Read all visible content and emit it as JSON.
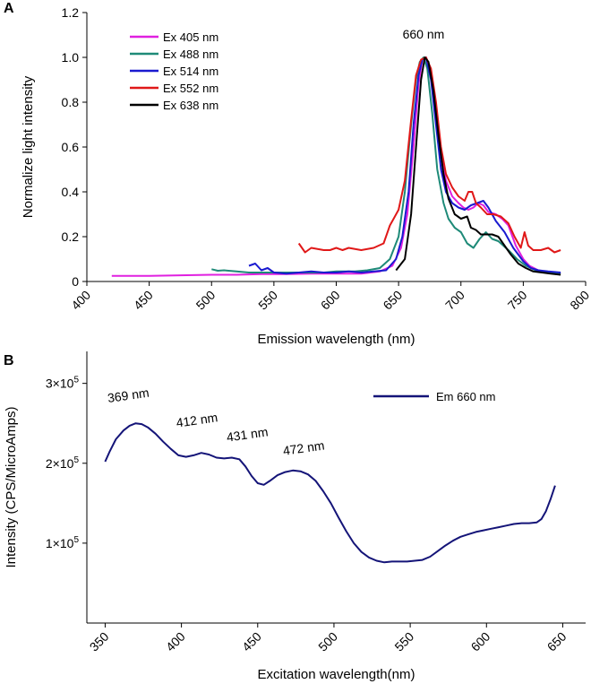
{
  "chart_data": [
    {
      "type": "line",
      "panel_label": "A",
      "xlabel": "Emission wavelength (nm)",
      "ylabel": "Normalize light intensity",
      "xlim": [
        400,
        800
      ],
      "ylim": [
        0,
        1.2
      ],
      "xticks": [
        "400",
        "450",
        "500",
        "550",
        "600",
        "650",
        "700",
        "750",
        "800"
      ],
      "yticks": [
        "0",
        "0.2",
        "0.4",
        "0.6",
        "0.8",
        "1.0",
        "1.2"
      ],
      "annotations": [
        {
          "text": "660 nm",
          "x": 670,
          "y": 1.06
        }
      ],
      "legend_position": "top-left",
      "series": [
        {
          "name": "Ex 405 nm",
          "color": "#e020e0",
          "points": [
            [
              420,
              0.025
            ],
            [
              450,
              0.025
            ],
            [
              480,
              0.028
            ],
            [
              500,
              0.03
            ],
            [
              520,
              0.03
            ],
            [
              540,
              0.033
            ],
            [
              560,
              0.033
            ],
            [
              580,
              0.035
            ],
            [
              600,
              0.035
            ],
            [
              620,
              0.035
            ],
            [
              635,
              0.045
            ],
            [
              645,
              0.07
            ],
            [
              652,
              0.15
            ],
            [
              657,
              0.3
            ],
            [
              662,
              0.6
            ],
            [
              666,
              0.88
            ],
            [
              669,
              0.99
            ],
            [
              672,
              1.0
            ],
            [
              675,
              0.95
            ],
            [
              679,
              0.8
            ],
            [
              683,
              0.6
            ],
            [
              688,
              0.45
            ],
            [
              693,
              0.38
            ],
            [
              698,
              0.35
            ],
            [
              702,
              0.33
            ],
            [
              706,
              0.32
            ],
            [
              710,
              0.33
            ],
            [
              714,
              0.35
            ],
            [
              718,
              0.34
            ],
            [
              722,
              0.31
            ],
            [
              728,
              0.3
            ],
            [
              733,
              0.28
            ],
            [
              738,
              0.25
            ],
            [
              744,
              0.16
            ],
            [
              750,
              0.1
            ],
            [
              755,
              0.07
            ],
            [
              762,
              0.05
            ],
            [
              770,
              0.04
            ],
            [
              780,
              0.035
            ]
          ]
        },
        {
          "name": "Ex 488 nm",
          "color": "#1e8a78",
          "points": [
            [
              500,
              0.055
            ],
            [
              505,
              0.048
            ],
            [
              510,
              0.05
            ],
            [
              520,
              0.045
            ],
            [
              530,
              0.04
            ],
            [
              540,
              0.04
            ],
            [
              550,
              0.04
            ],
            [
              560,
              0.04
            ],
            [
              570,
              0.04
            ],
            [
              580,
              0.04
            ],
            [
              590,
              0.04
            ],
            [
              600,
              0.045
            ],
            [
              615,
              0.045
            ],
            [
              625,
              0.05
            ],
            [
              635,
              0.06
            ],
            [
              643,
              0.1
            ],
            [
              650,
              0.2
            ],
            [
              655,
              0.4
            ],
            [
              660,
              0.7
            ],
            [
              664,
              0.9
            ],
            [
              667,
              0.98
            ],
            [
              670,
              1.0
            ],
            [
              673,
              0.95
            ],
            [
              677,
              0.75
            ],
            [
              681,
              0.5
            ],
            [
              686,
              0.35
            ],
            [
              690,
              0.28
            ],
            [
              695,
              0.24
            ],
            [
              700,
              0.22
            ],
            [
              705,
              0.17
            ],
            [
              710,
              0.15
            ],
            [
              715,
              0.19
            ],
            [
              720,
              0.22
            ],
            [
              725,
              0.19
            ],
            [
              730,
              0.18
            ],
            [
              738,
              0.14
            ],
            [
              745,
              0.1
            ],
            [
              752,
              0.07
            ],
            [
              760,
              0.05
            ],
            [
              770,
              0.04
            ],
            [
              780,
              0.035
            ]
          ]
        },
        {
          "name": "Ex 514 nm",
          "color": "#1a1ad0",
          "points": [
            [
              530,
              0.07
            ],
            [
              535,
              0.08
            ],
            [
              540,
              0.05
            ],
            [
              545,
              0.06
            ],
            [
              550,
              0.04
            ],
            [
              560,
              0.035
            ],
            [
              570,
              0.04
            ],
            [
              580,
              0.045
            ],
            [
              590,
              0.04
            ],
            [
              600,
              0.04
            ],
            [
              610,
              0.045
            ],
            [
              620,
              0.04
            ],
            [
              630,
              0.045
            ],
            [
              640,
              0.05
            ],
            [
              648,
              0.1
            ],
            [
              653,
              0.2
            ],
            [
              658,
              0.4
            ],
            [
              662,
              0.7
            ],
            [
              666,
              0.92
            ],
            [
              669,
              0.99
            ],
            [
              672,
              1.0
            ],
            [
              676,
              0.9
            ],
            [
              680,
              0.7
            ],
            [
              684,
              0.5
            ],
            [
              688,
              0.4
            ],
            [
              693,
              0.35
            ],
            [
              698,
              0.33
            ],
            [
              703,
              0.32
            ],
            [
              708,
              0.34
            ],
            [
              713,
              0.35
            ],
            [
              718,
              0.36
            ],
            [
              722,
              0.33
            ],
            [
              728,
              0.27
            ],
            [
              735,
              0.22
            ],
            [
              742,
              0.15
            ],
            [
              750,
              0.09
            ],
            [
              756,
              0.06
            ],
            [
              762,
              0.05
            ],
            [
              770,
              0.045
            ],
            [
              780,
              0.04
            ]
          ]
        },
        {
          "name": "Ex 552 nm",
          "color": "#e01818",
          "points": [
            [
              570,
              0.17
            ],
            [
              575,
              0.13
            ],
            [
              580,
              0.15
            ],
            [
              590,
              0.14
            ],
            [
              595,
              0.14
            ],
            [
              600,
              0.15
            ],
            [
              605,
              0.14
            ],
            [
              610,
              0.15
            ],
            [
              620,
              0.14
            ],
            [
              630,
              0.15
            ],
            [
              638,
              0.17
            ],
            [
              643,
              0.25
            ],
            [
              646,
              0.28
            ],
            [
              650,
              0.32
            ],
            [
              655,
              0.45
            ],
            [
              660,
              0.72
            ],
            [
              664,
              0.92
            ],
            [
              668,
              0.99
            ],
            [
              672,
              1.0
            ],
            [
              676,
              0.95
            ],
            [
              680,
              0.8
            ],
            [
              684,
              0.6
            ],
            [
              688,
              0.48
            ],
            [
              693,
              0.42
            ],
            [
              698,
              0.38
            ],
            [
              703,
              0.36
            ],
            [
              706,
              0.4
            ],
            [
              709,
              0.4
            ],
            [
              712,
              0.35
            ],
            [
              716,
              0.33
            ],
            [
              721,
              0.3
            ],
            [
              726,
              0.3
            ],
            [
              732,
              0.29
            ],
            [
              738,
              0.26
            ],
            [
              743,
              0.2
            ],
            [
              748,
              0.15
            ],
            [
              751,
              0.22
            ],
            [
              754,
              0.16
            ],
            [
              758,
              0.14
            ],
            [
              764,
              0.14
            ],
            [
              770,
              0.15
            ],
            [
              775,
              0.13
            ],
            [
              780,
              0.14
            ]
          ]
        },
        {
          "name": "Ex 638 nm",
          "color": "#000000",
          "points": [
            [
              648,
              0.05
            ],
            [
              655,
              0.1
            ],
            [
              660,
              0.3
            ],
            [
              664,
              0.6
            ],
            [
              668,
              0.9
            ],
            [
              671,
              1.0
            ],
            [
              674,
              0.98
            ],
            [
              678,
              0.85
            ],
            [
              682,
              0.65
            ],
            [
              686,
              0.48
            ],
            [
              690,
              0.37
            ],
            [
              695,
              0.3
            ],
            [
              700,
              0.28
            ],
            [
              705,
              0.29
            ],
            [
              708,
              0.24
            ],
            [
              712,
              0.23
            ],
            [
              716,
              0.21
            ],
            [
              720,
              0.21
            ],
            [
              725,
              0.21
            ],
            [
              730,
              0.2
            ],
            [
              735,
              0.16
            ],
            [
              740,
              0.12
            ],
            [
              746,
              0.08
            ],
            [
              752,
              0.06
            ],
            [
              758,
              0.045
            ],
            [
              765,
              0.04
            ],
            [
              772,
              0.035
            ],
            [
              780,
              0.03
            ]
          ]
        }
      ]
    },
    {
      "type": "line",
      "panel_label": "B",
      "xlabel": "Excitation wavelength(nm)",
      "ylabel": "Intensity (CPS/MicroAmps)",
      "xlim": [
        338,
        665
      ],
      "ylim": [
        0,
        340000
      ],
      "xticks": [
        "350",
        "400",
        "450",
        "500",
        "550",
        "600",
        "650"
      ],
      "yticks": [
        {
          "value": 100000,
          "mantissa": "1×10",
          "exp": "5"
        },
        {
          "value": 200000,
          "mantissa": "2×10",
          "exp": "5"
        },
        {
          "value": 300000,
          "mantissa": "3×10",
          "exp": "5"
        }
      ],
      "annotations": [
        {
          "text": "369 nm",
          "x": 352,
          "y": 276000
        },
        {
          "text": "412 nm",
          "x": 397,
          "y": 245000
        },
        {
          "text": "431 nm",
          "x": 430,
          "y": 227000
        },
        {
          "text": "472 nm",
          "x": 467,
          "y": 210000
        }
      ],
      "legend_position": "top-right",
      "series": [
        {
          "name": "Em 660 nm",
          "color": "#141478",
          "points": [
            [
              350,
              202000
            ],
            [
              353,
              215000
            ],
            [
              357,
              230000
            ],
            [
              362,
              241000
            ],
            [
              366,
              247000
            ],
            [
              370,
              250000
            ],
            [
              374,
              249000
            ],
            [
              378,
              245000
            ],
            [
              383,
              237000
            ],
            [
              388,
              227000
            ],
            [
              393,
              218000
            ],
            [
              398,
              210000
            ],
            [
              403,
              208000
            ],
            [
              408,
              210000
            ],
            [
              413,
              213000
            ],
            [
              418,
              211000
            ],
            [
              423,
              207000
            ],
            [
              428,
              206000
            ],
            [
              433,
              207000
            ],
            [
              438,
              205000
            ],
            [
              442,
              196000
            ],
            [
              446,
              184000
            ],
            [
              450,
              175000
            ],
            [
              454,
              173000
            ],
            [
              458,
              178000
            ],
            [
              463,
              185000
            ],
            [
              468,
              189000
            ],
            [
              473,
              191000
            ],
            [
              478,
              190000
            ],
            [
              483,
              186000
            ],
            [
              488,
              178000
            ],
            [
              493,
              165000
            ],
            [
              498,
              150000
            ],
            [
              503,
              132000
            ],
            [
              508,
              115000
            ],
            [
              513,
              100000
            ],
            [
              518,
              89000
            ],
            [
              523,
              82000
            ],
            [
              528,
              78000
            ],
            [
              533,
              76000
            ],
            [
              538,
              77000
            ],
            [
              543,
              77000
            ],
            [
              548,
              77000
            ],
            [
              553,
              78000
            ],
            [
              558,
              79000
            ],
            [
              563,
              83000
            ],
            [
              568,
              90000
            ],
            [
              573,
              97000
            ],
            [
              578,
              103000
            ],
            [
              583,
              108000
            ],
            [
              588,
              111000
            ],
            [
              593,
              114000
            ],
            [
              598,
              116000
            ],
            [
              603,
              118000
            ],
            [
              608,
              120000
            ],
            [
              613,
              122000
            ],
            [
              618,
              124000
            ],
            [
              623,
              125000
            ],
            [
              628,
              125000
            ],
            [
              633,
              126000
            ],
            [
              636,
              130000
            ],
            [
              639,
              140000
            ],
            [
              642,
              155000
            ],
            [
              645,
              172000
            ]
          ]
        }
      ]
    }
  ]
}
